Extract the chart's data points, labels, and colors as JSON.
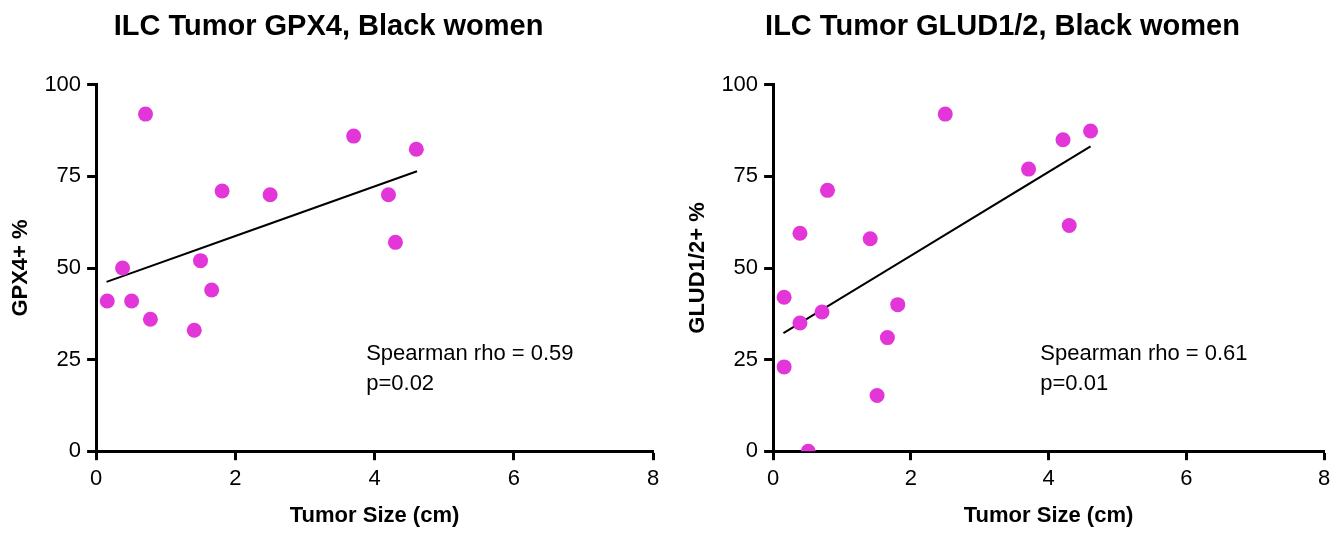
{
  "chart_data": [
    {
      "type": "scatter",
      "title": "ILC Tumor GPX4, Black women",
      "xlabel": "Tumor Size (cm)",
      "ylabel": "GPX4+ %",
      "xlim": [
        0,
        8
      ],
      "xticks": [
        0,
        2,
        4,
        6,
        8
      ],
      "ylim": [
        0,
        100
      ],
      "yticks": [
        0,
        25,
        50,
        75,
        100
      ],
      "series": [
        {
          "color": "#e236d9",
          "marker": "circle",
          "x": [
            0.16,
            0.71,
            0.38,
            0.51,
            0.78,
            1.41,
            1.5,
            1.66,
            1.81,
            2.5,
            3.7,
            4.2,
            4.3,
            4.6
          ],
          "values": [
            41,
            92,
            50,
            41,
            36,
            33,
            52,
            44,
            71,
            70,
            86,
            70,
            57,
            82.4
          ]
        },
        {
          "type": "line",
          "marker": "none",
          "color": "#000000",
          "x": [
            0.15,
            4.61
          ],
          "values": [
            46.2,
            76.4
          ]
        }
      ],
      "annotations": [
        "Spearman rho = 0.59",
        "p=0.02"
      ]
    },
    {
      "type": "scatter",
      "title": "ILC Tumor GLUD1/2, Black women",
      "xlabel": "Tumor Size (cm)",
      "ylabel": "GLUD1/2+ %",
      "xlim": [
        0,
        8
      ],
      "xticks": [
        0,
        2,
        4,
        6,
        8
      ],
      "ylim": [
        0,
        100
      ],
      "yticks": [
        0,
        25,
        50,
        75,
        100
      ],
      "series": [
        {
          "color": "#e236d9",
          "marker": "circle",
          "x": [
            0.16,
            0.16,
            0.39,
            0.39,
            0.51,
            0.71,
            0.79,
            1.41,
            1.51,
            1.66,
            1.81,
            2.5,
            3.71,
            4.21,
            4.3,
            4.61
          ],
          "values": [
            42,
            23,
            59.5,
            35,
            0,
            38,
            71.2,
            58,
            15.2,
            31,
            40,
            92,
            77,
            85,
            61.6,
            87.4
          ]
        },
        {
          "type": "line",
          "marker": "none",
          "color": "#000000",
          "x": [
            0.15,
            4.61
          ],
          "values": [
            32.2,
            83.2
          ]
        }
      ],
      "annotations": [
        "Spearman rho = 0.61",
        "p=0.01"
      ]
    }
  ]
}
